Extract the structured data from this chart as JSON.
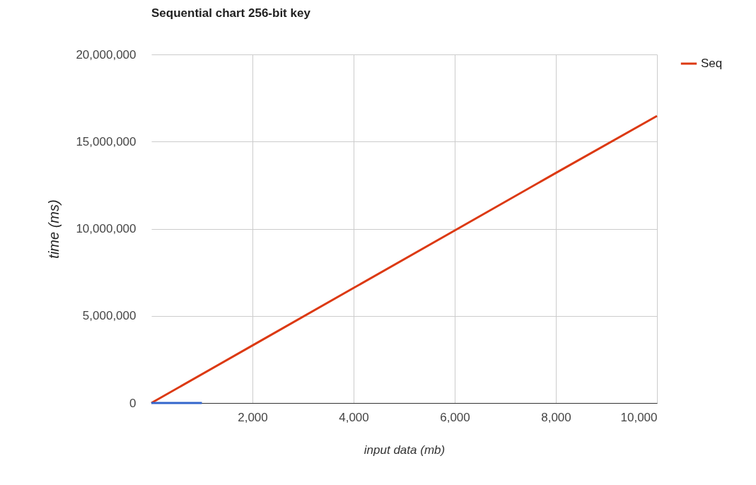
{
  "chart_data": {
    "type": "line",
    "title": "Sequential chart 256-bit key",
    "xlabel": "input data (mb)",
    "ylabel": "time (ms)",
    "series": [
      {
        "name": "Seq",
        "color": "#dc3912",
        "x": [
          0,
          2000,
          4000,
          6000,
          8000,
          10000
        ],
        "values": [
          0,
          3300000,
          6600000,
          9900000,
          13200000,
          16470000
        ]
      },
      {
        "color": "#3366cc",
        "x": [
          0,
          1000
        ],
        "values": [
          0,
          0
        ]
      }
    ],
    "xlim": [
      0,
      10000
    ],
    "xticks": [
      {
        "value": 2000,
        "label": "2,000"
      },
      {
        "value": 4000,
        "label": "4,000"
      },
      {
        "value": 6000,
        "label": "6,000"
      },
      {
        "value": 8000,
        "label": "8,000"
      },
      {
        "value": 10000,
        "label": "10,000"
      }
    ],
    "ylim": [
      0,
      20000000
    ],
    "yticks": [
      0,
      {
        "value": 5000000,
        "label": "5,000,000"
      },
      {
        "value": 10000000,
        "label": "10,000,000"
      },
      {
        "value": 15000000,
        "label": "15,000,000"
      },
      {
        "value": 20000000,
        "label": "20,000,000"
      }
    ],
    "grid": true,
    "legend": "right",
    "marker": "none",
    "line_style": "solid"
  }
}
